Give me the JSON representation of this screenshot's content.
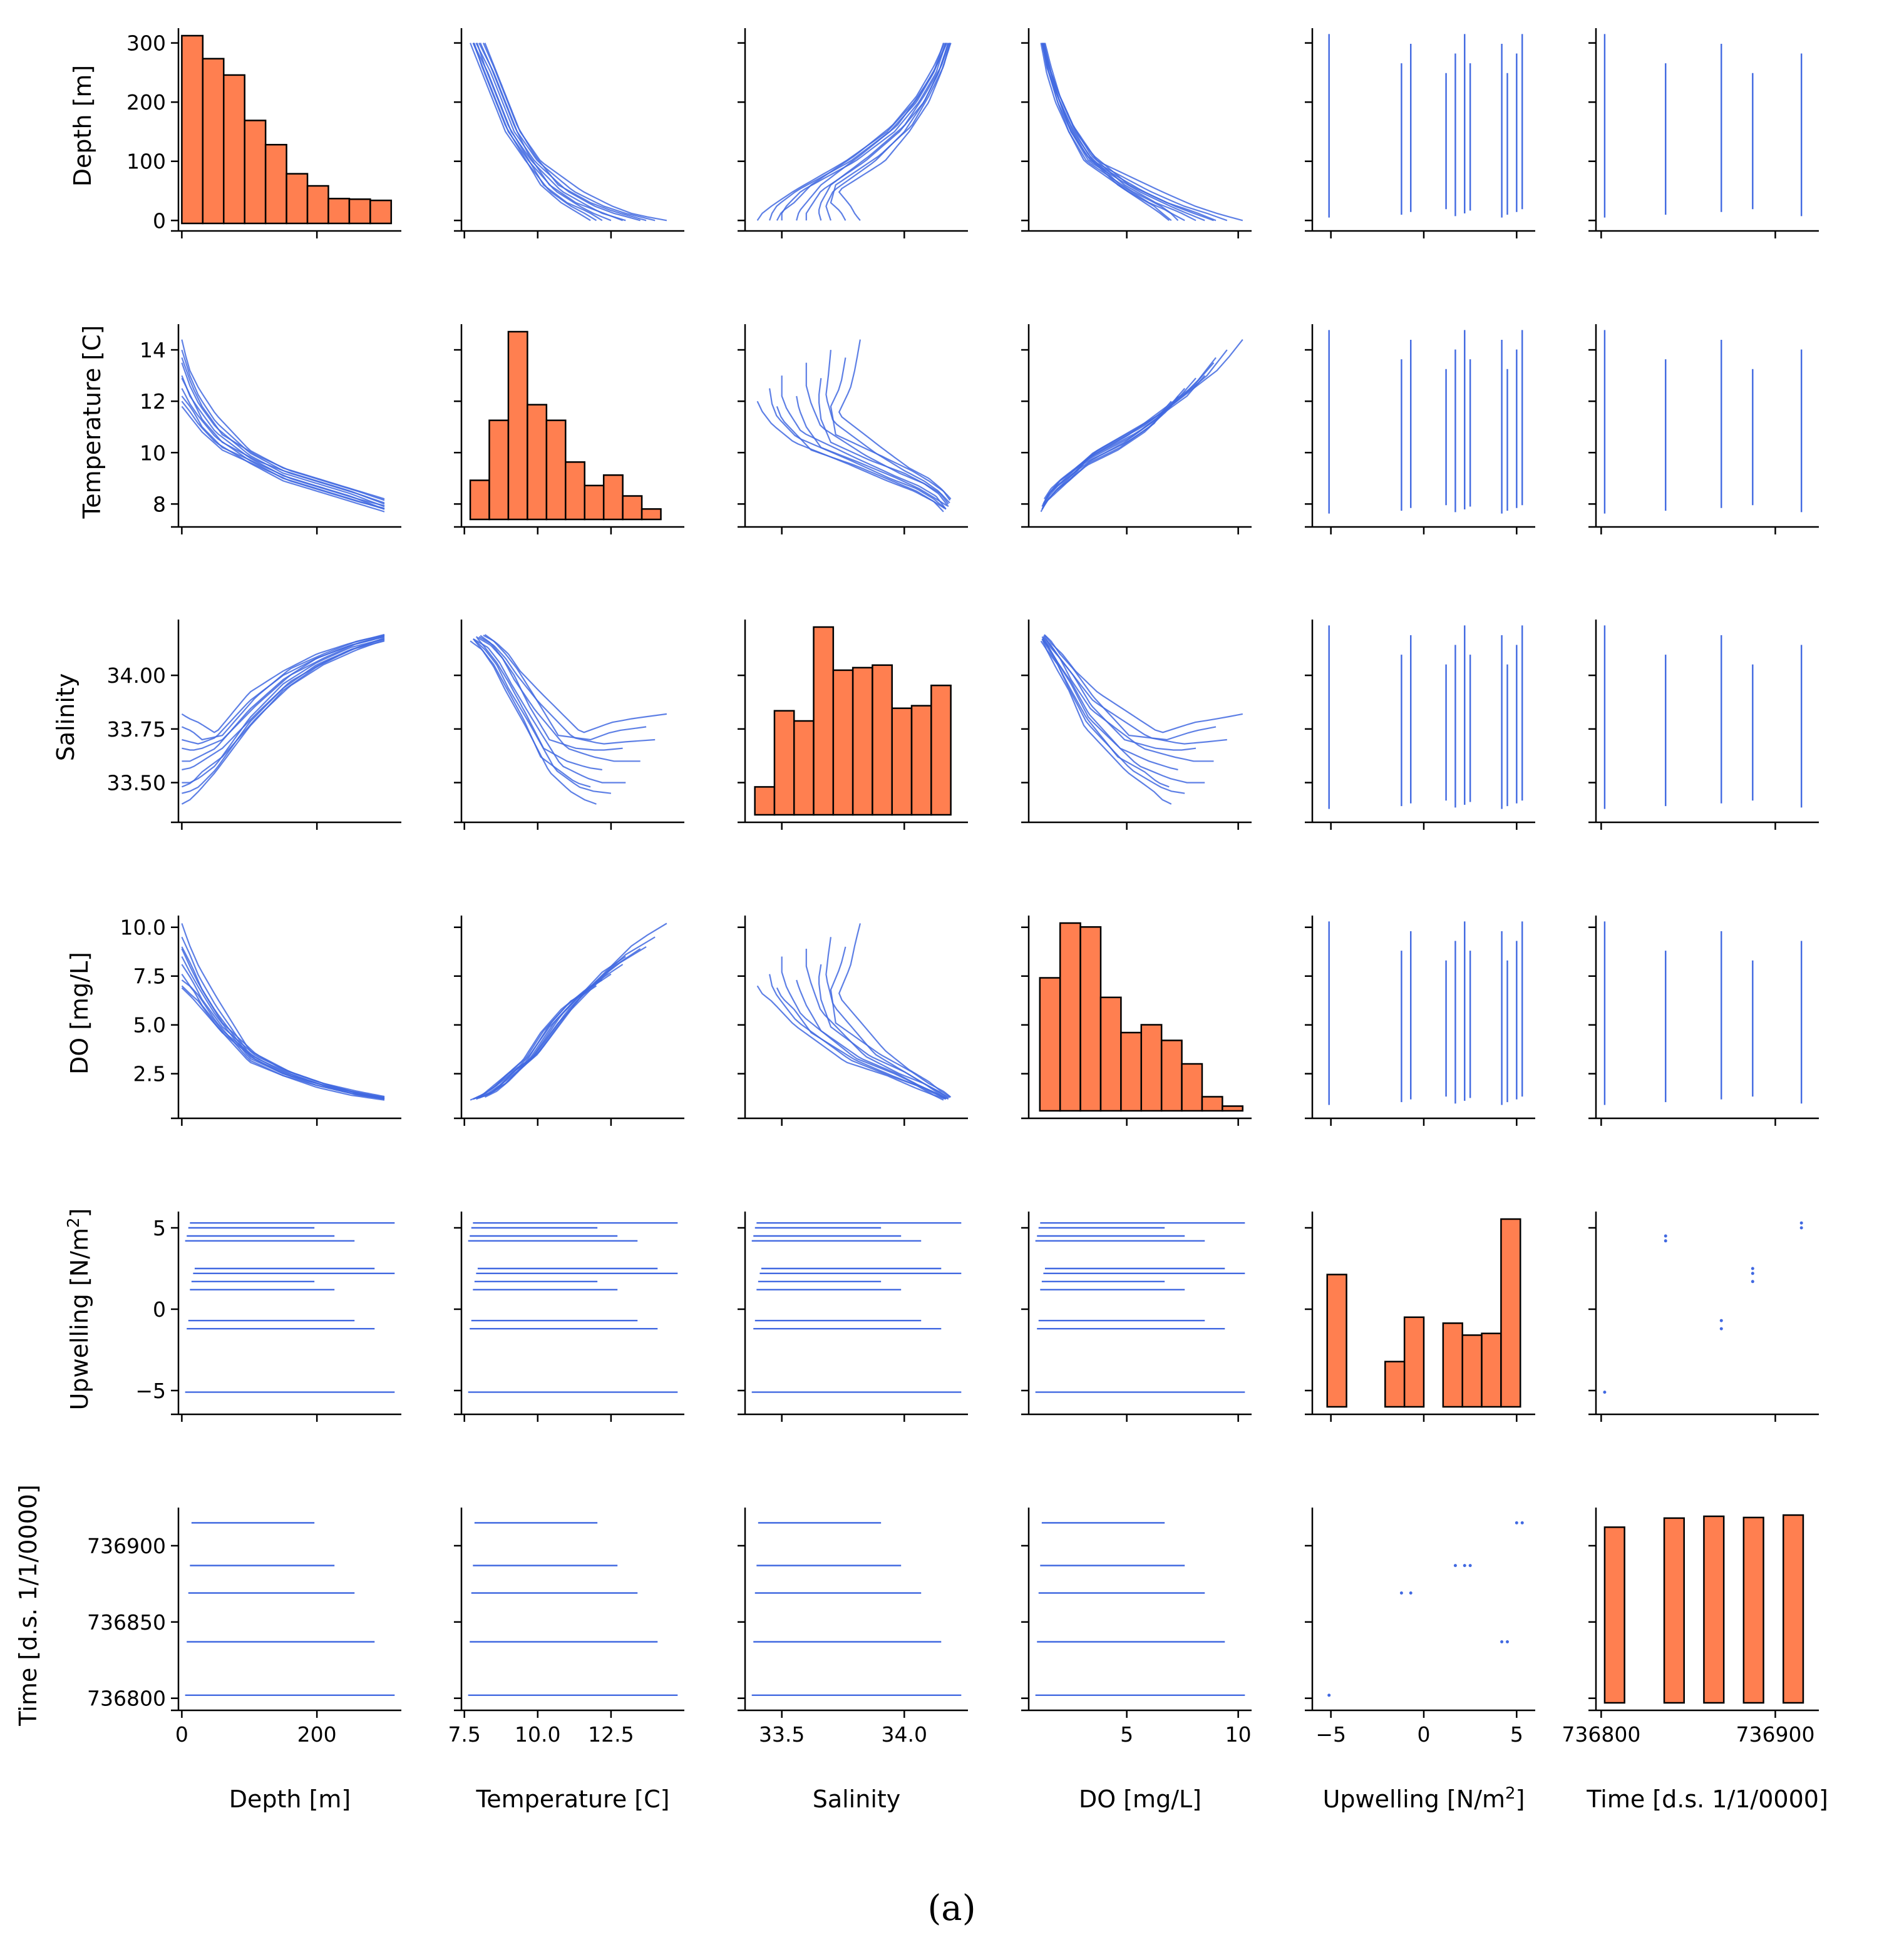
{
  "figure": {
    "caption": "(a)",
    "caption_parts": [
      "(",
      "a",
      ")"
    ],
    "colors": {
      "hist_fill": "#FF7F50",
      "hist_edge": "#000000",
      "scatter": "#4169E1",
      "axis": "#000000"
    }
  },
  "chart_data": {
    "type": "pairplot",
    "variables": [
      {
        "name": "Depth [m]",
        "xlabel": "Depth [m]",
        "ylabel": "Depth [m]",
        "range": [
          -5,
          325
        ],
        "ticks": [
          0,
          200
        ],
        "tick_labels": [
          "0",
          "200"
        ],
        "ytick_values": [
          0,
          100,
          200,
          300
        ],
        "ytick_labels": [
          "0",
          "100",
          "200",
          "300"
        ]
      },
      {
        "name": "Temperature [C]",
        "xlabel": "Temperature [C]",
        "ylabel": "Temperature [C]",
        "range": [
          7.4,
          15.0
        ],
        "ticks": [
          7.5,
          10.0,
          12.5
        ],
        "tick_labels": [
          "7.5",
          "10.0",
          "12.5"
        ],
        "ytick_values": [
          8,
          10,
          12,
          14
        ],
        "ytick_labels": [
          "8",
          "10",
          "12",
          "14"
        ]
      },
      {
        "name": "Salinity",
        "xlabel": "Salinity",
        "ylabel": "Salinity",
        "range": [
          33.35,
          34.26
        ],
        "ticks": [
          33.5,
          34.0
        ],
        "tick_labels": [
          "33.5",
          "34.0"
        ],
        "ytick_values": [
          33.5,
          33.75,
          34.0
        ],
        "ytick_labels": [
          "33.50",
          "33.75",
          "34.00"
        ]
      },
      {
        "name": "DO [mg/L]",
        "xlabel": "DO [mg/L]",
        "ylabel": "DO [mg/L]",
        "range": [
          0.6,
          10.6
        ],
        "ticks": [
          5,
          10
        ],
        "tick_labels": [
          "5",
          "10"
        ],
        "ytick_values": [
          2.5,
          5.0,
          7.5,
          10.0
        ],
        "ytick_labels": [
          "2.5",
          "5.0",
          "7.5",
          "10.0"
        ]
      },
      {
        "name": "Upwelling [N/m2]",
        "xlabel": "Upwelling [N/m",
        "ylabel": "Upwelling [N/m",
        "unit_tail": "]",
        "superscript": "2",
        "range": [
          -6,
          6
        ],
        "ticks": [
          -5,
          0,
          5
        ],
        "tick_labels": [
          "−5",
          "0",
          "5"
        ],
        "ytick_values": [
          -5,
          0,
          5
        ],
        "ytick_labels": [
          "−5",
          "0",
          "5"
        ]
      },
      {
        "name": "Time [d.s. 1/1/0000]",
        "xlabel": "Time [d.s. 1/1/0000]",
        "ylabel": "Time [d.s. 1/1/0000]",
        "range": [
          736797,
          736925
        ],
        "ticks": [
          736800,
          736900
        ],
        "tick_labels": [
          "736800",
          "736900"
        ],
        "ytick_values": [
          736800,
          736850,
          736900
        ],
        "ytick_labels": [
          "736800",
          "736850",
          "736900"
        ]
      }
    ],
    "histograms": [
      {
        "variable": "Depth [m]",
        "bins": [
          0,
          31,
          62,
          93,
          124,
          155,
          186,
          217,
          248,
          279,
          310
        ],
        "counts": [
          310,
          272,
          245,
          170,
          130,
          82,
          62,
          41,
          40,
          38
        ]
      },
      {
        "variable": "Temperature [C]",
        "bins": [
          7.7,
          8.35,
          9.0,
          9.65,
          10.3,
          10.95,
          11.6,
          12.25,
          12.9,
          13.55,
          14.2
        ],
        "counts": [
          75,
          190,
          360,
          220,
          190,
          110,
          65,
          85,
          45,
          20
        ]
      },
      {
        "variable": "Salinity",
        "bins": [
          33.39,
          33.47,
          33.55,
          33.63,
          33.71,
          33.79,
          33.87,
          33.95,
          34.03,
          34.11,
          34.19
        ],
        "counts": [
          55,
          205,
          185,
          370,
          285,
          290,
          295,
          210,
          215,
          255
        ]
      },
      {
        "variable": "DO [mg/L]",
        "bins": [
          1.1,
          2.01,
          2.92,
          3.83,
          4.74,
          5.65,
          6.56,
          7.47,
          8.38,
          9.29,
          10.2
        ],
        "counts": [
          170,
          240,
          235,
          145,
          100,
          110,
          90,
          60,
          18,
          6
        ]
      },
      {
        "variable": "Upwelling [N/m2]",
        "bins": [
          -5.2,
          -4.16,
          -3.12,
          -2.08,
          -1.04,
          0.0,
          1.04,
          2.08,
          3.12,
          4.16,
          5.2
        ],
        "counts": [
          155,
          0,
          0,
          53,
          105,
          0,
          98,
          84,
          86,
          220
        ]
      },
      {
        "variable": "Time [d.s. 1/1/0000]",
        "bins": [
          736802,
          736813.4,
          736824.8,
          736836.2,
          736847.6,
          736859.0,
          736870.4,
          736881.8,
          736893.2,
          736904.6,
          736916
        ],
        "counts": [
          290,
          0,
          0,
          305,
          0,
          308,
          0,
          306,
          0,
          310
        ]
      }
    ],
    "profiles": [
      [
        [
          0,
          14.4,
          33.82,
          10.2
        ],
        [
          10,
          13.3,
          33.8,
          9.2
        ],
        [
          25,
          12.5,
          33.78,
          8.0
        ],
        [
          50,
          11.5,
          33.73,
          6.5
        ],
        [
          100,
          10.1,
          33.92,
          3.7
        ],
        [
          150,
          9.4,
          34.02,
          2.7
        ],
        [
          200,
          9.0,
          34.1,
          2.1
        ],
        [
          250,
          8.6,
          34.15,
          1.6
        ],
        [
          300,
          8.2,
          34.19,
          1.3
        ]
      ],
      [
        [
          0,
          14.0,
          33.7,
          9.5
        ],
        [
          12,
          13.0,
          33.69,
          8.6
        ],
        [
          25,
          12.2,
          33.68,
          7.5
        ],
        [
          50,
          11.2,
          33.71,
          6.0
        ],
        [
          100,
          10.0,
          33.88,
          3.5
        ],
        [
          150,
          9.3,
          34.0,
          2.6
        ],
        [
          200,
          8.9,
          34.08,
          2.0
        ],
        [
          250,
          8.5,
          34.14,
          1.6
        ],
        [
          300,
          8.0,
          34.18,
          1.25
        ]
      ],
      [
        [
          0,
          13.5,
          33.6,
          8.9
        ],
        [
          12,
          12.6,
          33.6,
          8.0
        ],
        [
          25,
          11.9,
          33.62,
          7.1
        ],
        [
          50,
          11.0,
          33.66,
          5.7
        ],
        [
          100,
          9.9,
          33.84,
          3.4
        ],
        [
          150,
          9.2,
          33.98,
          2.5
        ],
        [
          200,
          8.8,
          34.08,
          2.0
        ],
        [
          250,
          8.4,
          34.14,
          1.5
        ],
        [
          300,
          7.9,
          34.18,
          1.2
        ]
      ],
      [
        [
          0,
          13.0,
          33.5,
          8.5
        ],
        [
          12,
          12.2,
          33.5,
          7.7
        ],
        [
          25,
          11.7,
          33.52,
          6.9
        ],
        [
          50,
          10.8,
          33.58,
          5.5
        ],
        [
          100,
          9.8,
          33.8,
          3.3
        ],
        [
          150,
          9.1,
          33.96,
          2.5
        ],
        [
          200,
          8.7,
          34.06,
          1.9
        ],
        [
          250,
          8.3,
          34.13,
          1.5
        ],
        [
          300,
          7.8,
          34.17,
          1.2
        ]
      ],
      [
        [
          0,
          12.5,
          33.45,
          7.6
        ],
        [
          12,
          11.9,
          33.46,
          7.0
        ],
        [
          25,
          11.4,
          33.48,
          6.5
        ],
        [
          50,
          10.6,
          33.56,
          5.2
        ],
        [
          100,
          9.7,
          33.78,
          3.2
        ],
        [
          150,
          9.0,
          33.94,
          2.4
        ],
        [
          200,
          8.6,
          34.05,
          1.9
        ],
        [
          250,
          8.2,
          34.12,
          1.5
        ],
        [
          300,
          7.8,
          34.17,
          1.2
        ]
      ],
      [
        [
          0,
          12.0,
          33.4,
          7.0
        ],
        [
          12,
          11.6,
          33.42,
          6.6
        ],
        [
          25,
          11.1,
          33.46,
          6.2
        ],
        [
          50,
          10.4,
          33.55,
          5.0
        ],
        [
          100,
          9.6,
          33.76,
          3.1
        ],
        [
          150,
          8.9,
          33.93,
          2.4
        ],
        [
          200,
          8.5,
          34.04,
          1.8
        ],
        [
          250,
          8.1,
          34.12,
          1.4
        ],
        [
          300,
          7.7,
          34.16,
          1.15
        ]
      ],
      [
        [
          0,
          13.7,
          33.76,
          9.0
        ],
        [
          15,
          12.6,
          33.74,
          8.0
        ],
        [
          30,
          11.8,
          33.7,
          6.8
        ],
        [
          60,
          10.7,
          33.72,
          5.1
        ],
        [
          110,
          9.9,
          33.9,
          3.5
        ],
        [
          160,
          9.3,
          34.03,
          2.6
        ],
        [
          210,
          8.9,
          34.1,
          2.0
        ],
        [
          260,
          8.5,
          34.16,
          1.6
        ],
        [
          305,
          8.1,
          34.19,
          1.3
        ]
      ],
      [
        [
          0,
          12.9,
          33.66,
          8.1
        ],
        [
          15,
          12.1,
          33.65,
          7.3
        ],
        [
          30,
          11.3,
          33.66,
          6.3
        ],
        [
          60,
          10.4,
          33.7,
          4.9
        ],
        [
          110,
          9.7,
          33.86,
          3.4
        ],
        [
          160,
          9.2,
          34.0,
          2.6
        ],
        [
          210,
          8.8,
          34.08,
          2.0
        ],
        [
          260,
          8.4,
          34.15,
          1.5
        ],
        [
          305,
          8.0,
          34.19,
          1.25
        ]
      ],
      [
        [
          0,
          12.2,
          33.56,
          7.3
        ],
        [
          15,
          11.7,
          33.57,
          6.9
        ],
        [
          30,
          11.0,
          33.6,
          6.0
        ],
        [
          60,
          10.2,
          33.66,
          4.7
        ],
        [
          110,
          9.6,
          33.82,
          3.3
        ],
        [
          160,
          9.0,
          33.97,
          2.5
        ],
        [
          210,
          8.6,
          34.06,
          1.9
        ],
        [
          260,
          8.2,
          34.13,
          1.5
        ],
        [
          305,
          7.9,
          34.18,
          1.2
        ]
      ],
      [
        [
          0,
          11.8,
          33.48,
          6.9
        ],
        [
          15,
          11.3,
          33.5,
          6.4
        ],
        [
          30,
          10.8,
          33.55,
          5.8
        ],
        [
          60,
          10.1,
          33.62,
          4.6
        ],
        [
          110,
          9.5,
          33.8,
          3.2
        ],
        [
          160,
          8.9,
          33.95,
          2.4
        ],
        [
          210,
          8.5,
          34.05,
          1.9
        ],
        [
          260,
          8.1,
          34.12,
          1.4
        ],
        [
          305,
          7.8,
          34.17,
          1.2
        ]
      ]
    ],
    "upwelling_values": [
      -5.1,
      -1.2,
      -0.7,
      1.2,
      1.7,
      2.2,
      2.5,
      4.2,
      4.5,
      5.0,
      5.3
    ],
    "time_values": [
      736802,
      736837,
      736869,
      736887,
      736915
    ],
    "time_upwelling_pairs": [
      [
        736802,
        -5.1
      ],
      [
        736837,
        4.2
      ],
      [
        736837,
        4.5
      ],
      [
        736869,
        -1.2
      ],
      [
        736869,
        -0.7
      ],
      [
        736887,
        1.7
      ],
      [
        736887,
        2.2
      ],
      [
        736887,
        2.5
      ],
      [
        736915,
        5.0
      ],
      [
        736915,
        5.3
      ]
    ]
  }
}
